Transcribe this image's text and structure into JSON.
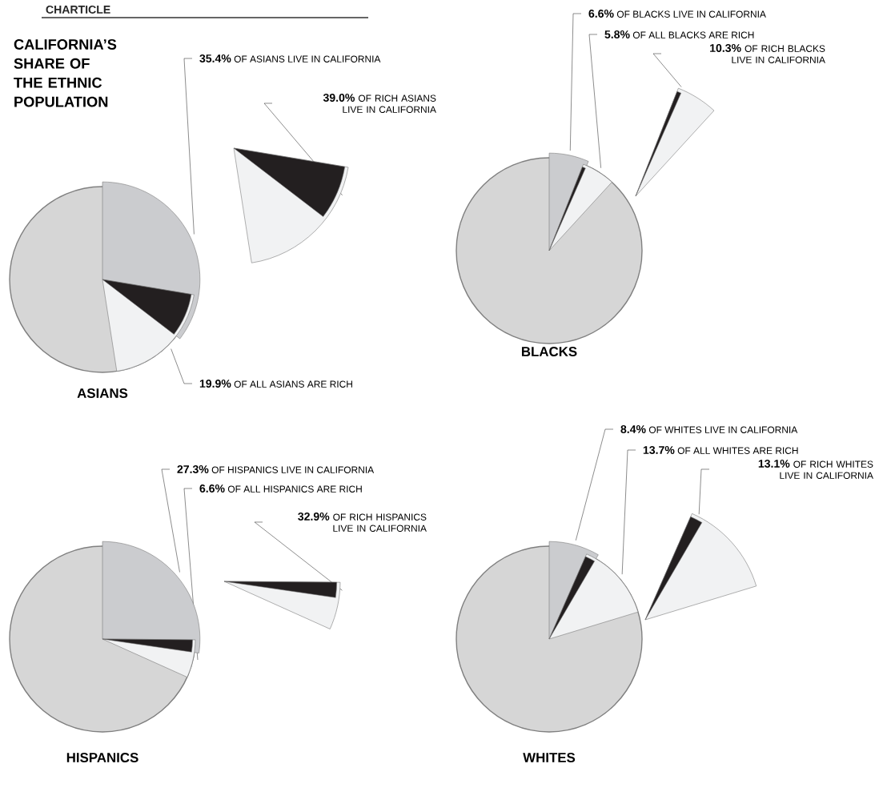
{
  "chart_data": [
    {
      "type": "other",
      "xlabel": "ASIANS",
      "annotations": [
        "CHARTICLE",
        "CALIFORNIA’S SHARE OF THE ETHNIC POPULATION"
      ],
      "categories": [
        "OF ASIANS LIVE IN CALIFORNIA",
        "OF ALL ASIANS ARE RICH",
        "OF RICH ASIANS LIVE IN CALIFORNIA"
      ],
      "values": [
        35.4,
        19.9,
        39.0
      ],
      "value_labels": [
        "35.4%",
        "19.9%",
        "39.0%"
      ],
      "colors": [
        "#cbcccf",
        "#f1f2f3",
        "#231f20"
      ]
    },
    {
      "type": "other",
      "xlabel": "BLACKS",
      "categories": [
        "OF BLACKS LIVE IN CALIFORNIA",
        "OF ALL BLACKS ARE RICH",
        "OF RICH BLACKS LIVE IN CALIFORNIA"
      ],
      "values": [
        6.6,
        5.8,
        10.3
      ],
      "value_labels": [
        "6.6%",
        "5.8%",
        "10.3%"
      ],
      "colors": [
        "#cbcccf",
        "#f1f2f3",
        "#231f20"
      ]
    },
    {
      "type": "other",
      "xlabel": "HISPANICS",
      "categories": [
        "OF HISPANICS LIVE IN CALIFORNIA",
        "OF ALL HISPANICS ARE RICH",
        "OF RICH HISPANICS LIVE IN CALIFORNIA"
      ],
      "values": [
        27.3,
        6.6,
        32.9
      ],
      "value_labels": [
        "27.3%",
        "6.6%",
        "32.9%"
      ],
      "colors": [
        "#cbcccf",
        "#f1f2f3",
        "#231f20"
      ]
    },
    {
      "type": "other",
      "xlabel": "WHITES",
      "categories": [
        "OF WHITES LIVE IN CALIFORNIA",
        "OF ALL WHITES ARE RICH",
        "OF RICH WHITES LIVE IN CALIFORNIA"
      ],
      "values": [
        8.4,
        13.7,
        13.1
      ],
      "value_labels": [
        "8.4%",
        "13.7%",
        "13.1%"
      ],
      "colors": [
        "#cbcccf",
        "#f1f2f3",
        "#231f20"
      ]
    }
  ]
}
